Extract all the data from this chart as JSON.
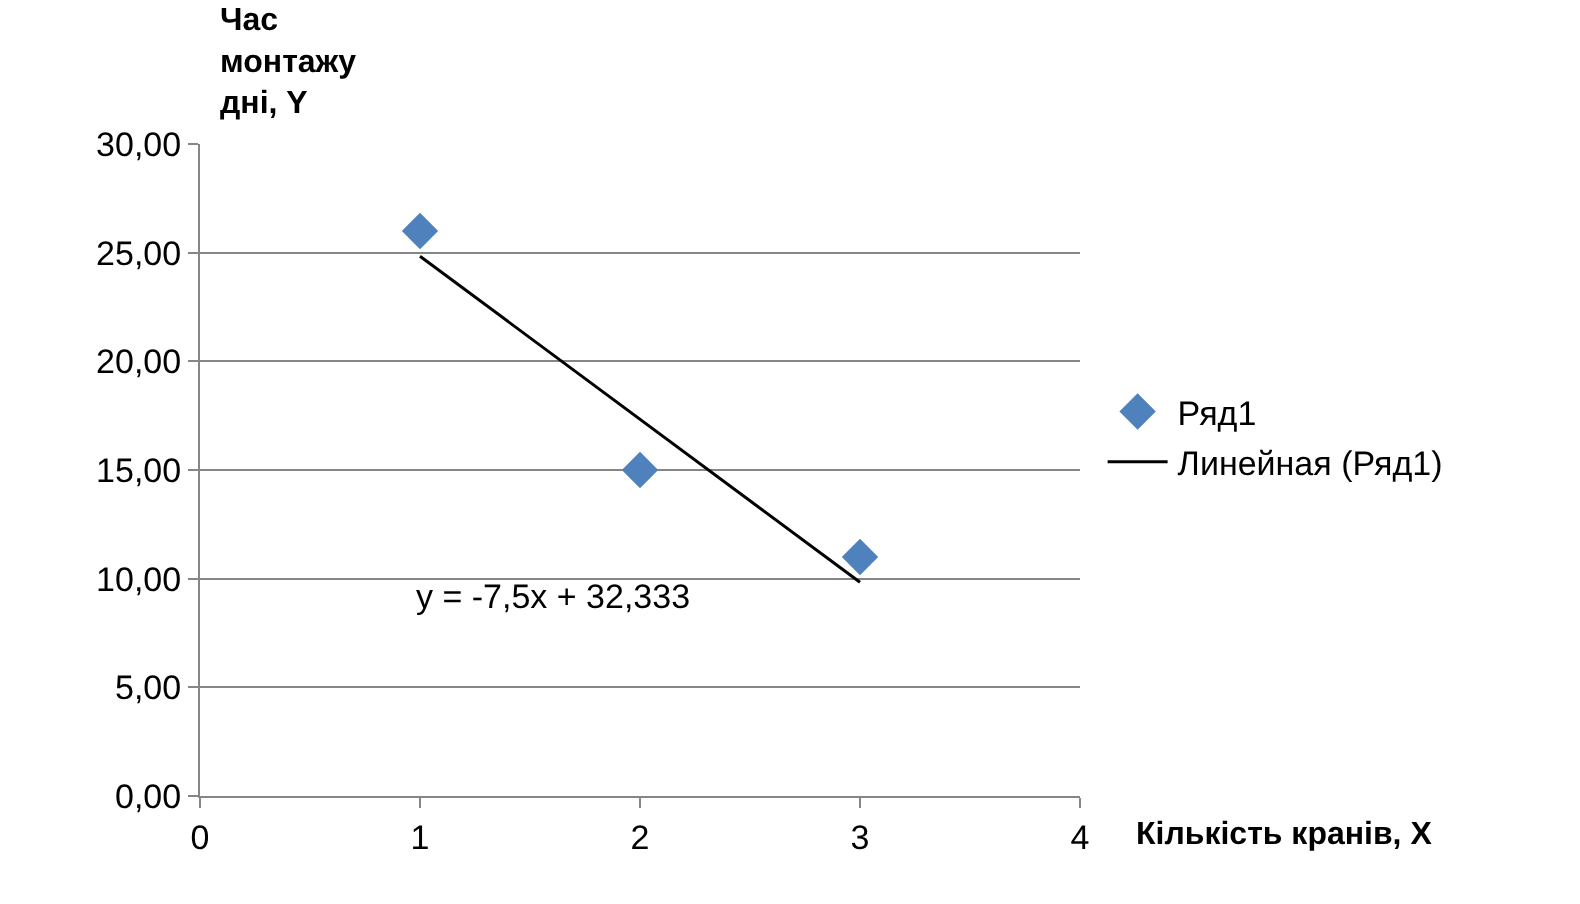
{
  "chart_data": {
    "type": "scatter",
    "xlabel": "Кількість кранів, X",
    "ylabel": "Час монтажу дні, Y",
    "series": [
      {
        "name": "Ряд1",
        "color": "#4f81bd",
        "x": [
          1,
          2,
          3
        ],
        "values": [
          26,
          15,
          11
        ],
        "marker": "diamond"
      },
      {
        "name": "Линейная (Ряд1)",
        "type": "line",
        "color": "#000000",
        "x": [
          1,
          3
        ],
        "values": [
          24.833,
          9.833
        ],
        "marker": "none",
        "line_style": "solid"
      }
    ],
    "annotations": [
      "y = -7,5x + 32,333"
    ],
    "xlim": [
      0,
      4
    ],
    "xticks": [
      0,
      1,
      2,
      3,
      4
    ],
    "ylim": [
      0,
      30
    ],
    "yticks": [
      {
        "value": 0,
        "label": "0,00"
      },
      {
        "value": 5,
        "label": "5,00"
      },
      {
        "value": 10,
        "label": "10,00"
      },
      {
        "value": 15,
        "label": "15,00"
      },
      {
        "value": 20,
        "label": "20,00"
      },
      {
        "value": 25,
        "label": "25,00"
      },
      {
        "value": 30,
        "label": "30,00"
      }
    ],
    "grid": "y",
    "legend": "right"
  }
}
